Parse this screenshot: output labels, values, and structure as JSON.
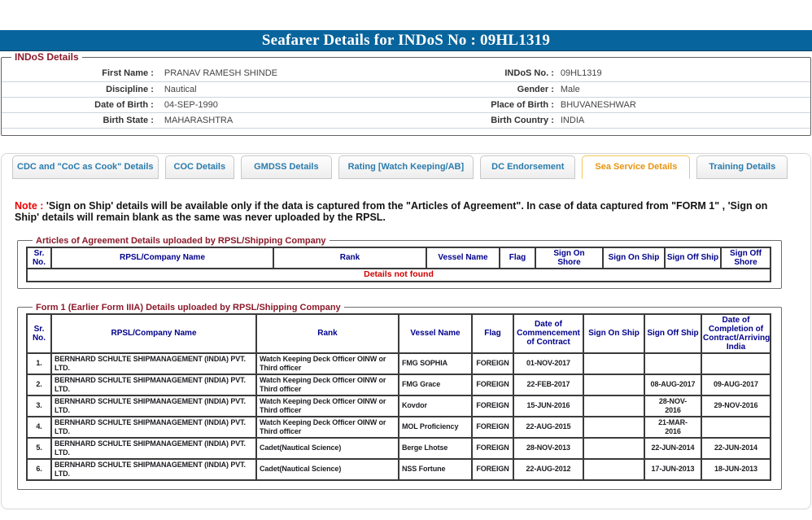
{
  "title_bar": {
    "text": "Seafarer Details for INDoS No : 09HL1319"
  },
  "indos_details": {
    "legend": "INDoS Details",
    "rows": [
      {
        "label1": "First Name :",
        "value1": "PRANAV RAMESH SHINDE",
        "label2": "INDoS No. :",
        "value2": "09HL1319"
      },
      {
        "label1": "Discipline :",
        "value1": "Nautical",
        "label2": "Gender :",
        "value2": "Male"
      },
      {
        "label1": "Date of Birth :",
        "value1": "04-SEP-1990",
        "label2": "Place of Birth :",
        "value2": "BHUVANESHWAR"
      },
      {
        "label1": "Birth State :",
        "value1": "MAHARASHTRA",
        "label2": "Birth Country :",
        "value2": "INDIA"
      }
    ]
  },
  "tabs": {
    "items": [
      {
        "label": "CDC and \"CoC as Cook\" Details",
        "active": false
      },
      {
        "label": "COC Details",
        "active": false
      },
      {
        "label": "GMDSS Details",
        "active": false
      },
      {
        "label": "Rating [Watch Keeping/AB]",
        "active": false
      },
      {
        "label": "DC Endorsement",
        "active": false
      },
      {
        "label": "Sea Service Details",
        "active": true
      },
      {
        "label": "Training Details",
        "active": false
      }
    ],
    "active_color": "#e8930f",
    "inactive_color": "#2b7cae",
    "active_border": "#f2c14a"
  },
  "note": {
    "prefix": "Note :",
    "text": " 'Sign on Ship' details will be available only if the data is captured from the \"Articles of Agreement\". In case of data captured from \"FORM 1\" , 'Sign on\nShip' details will remain blank as the same was never uploaded by the RPSL."
  },
  "articles": {
    "legend": "Articles of Agreement Details uploaded by RPSL/Shipping Company",
    "headers": [
      "Sr.\nNo.",
      "RPSL/Company Name",
      "Rank",
      "Vessel Name",
      "Flag",
      "Sign On\nShore",
      "Sign On Ship",
      "Sign Off Ship",
      "Sign Off\nShore"
    ],
    "empty_text": "Details not found"
  },
  "form1": {
    "legend": "Form 1 (Earlier Form IIIA) Details uploaded by RPSL/Shipping Company",
    "headers": [
      "Sr.\nNo.",
      "RPSL/Company Name",
      "Rank",
      "Vessel Name",
      "Flag",
      "Date of\nCommencement\nof Contract",
      "Sign On Ship",
      "Sign Off Ship",
      "Date of\nCompletion of\nContract/Arriving\nIndia"
    ],
    "rows": [
      [
        "1.",
        "BERNHARD SCHULTE SHIPMANAGEMENT (INDIA) PVT.\nLTD.",
        "Watch Keeping Deck Officer OINW or\nThird officer",
        "FMG SOPHIA",
        "FOREIGN",
        "01-NOV-2017",
        "",
        "",
        ""
      ],
      [
        "2.",
        "BERNHARD SCHULTE SHIPMANAGEMENT (INDIA) PVT.\nLTD.",
        "Watch Keeping Deck Officer OINW or\nThird officer",
        "FMG Grace",
        "FOREIGN",
        "22-FEB-2017",
        "",
        "08-AUG-2017",
        "09-AUG-2017"
      ],
      [
        "3.",
        "BERNHARD SCHULTE SHIPMANAGEMENT (INDIA) PVT.\nLTD.",
        "Watch Keeping Deck Officer OINW or\nThird officer",
        "Kovdor",
        "FOREIGN",
        "15-JUN-2016",
        "",
        "28-NOV-\n2016",
        "29-NOV-2016"
      ],
      [
        "4.",
        "BERNHARD SCHULTE SHIPMANAGEMENT (INDIA) PVT.\nLTD.",
        "Watch Keeping Deck Officer OINW or\nThird officer",
        "MOL Proficiency",
        "FOREIGN",
        "22-AUG-2015",
        "",
        "21-MAR-\n2016",
        ""
      ],
      [
        "5.",
        "BERNHARD SCHULTE SHIPMANAGEMENT (INDIA) PVT.\nLTD.",
        "Cadet(Nautical Science)",
        "Berge Lhotse",
        "FOREIGN",
        "28-NOV-2013",
        "",
        "22-JUN-2014",
        "22-JUN-2014"
      ],
      [
        "6.",
        "BERNHARD SCHULTE SHIPMANAGEMENT (INDIA) PVT.\nLTD.",
        "Cadet(Nautical Science)",
        "NSS Fortune",
        "FOREIGN",
        "22-AUG-2012",
        "",
        "17-JUN-2013",
        "18-JUN-2013"
      ]
    ]
  }
}
